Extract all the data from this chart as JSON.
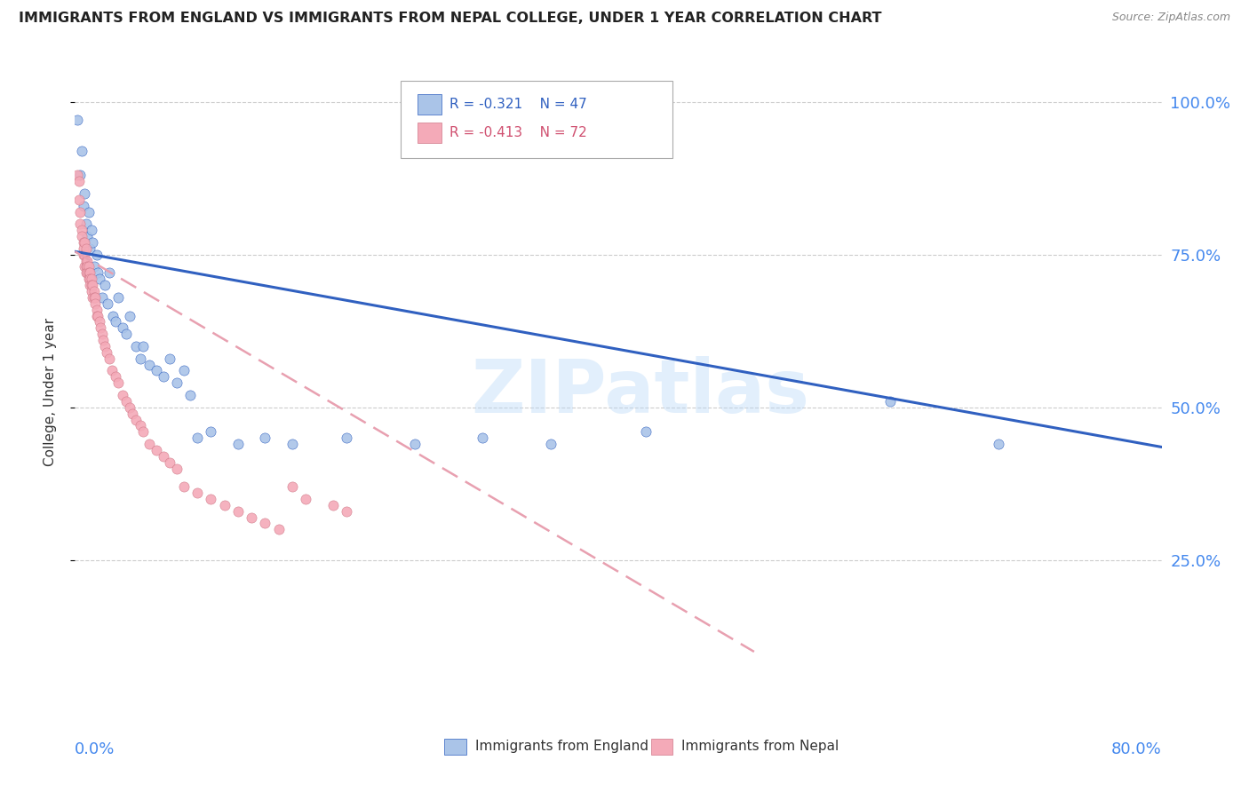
{
  "title": "IMMIGRANTS FROM ENGLAND VS IMMIGRANTS FROM NEPAL COLLEGE, UNDER 1 YEAR CORRELATION CHART",
  "source": "Source: ZipAtlas.com",
  "ylabel": "College, Under 1 year",
  "legend_england": "Immigrants from England",
  "legend_nepal": "Immigrants from Nepal",
  "r_england": -0.321,
  "n_england": 47,
  "r_nepal": -0.413,
  "n_nepal": 72,
  "england_color": "#aac4e8",
  "nepal_color": "#f4aab8",
  "england_line_color": "#3060c0",
  "nepal_line_color": "#e8a0b0",
  "right_axis_color": "#4488ee",
  "title_color": "#222222",
  "watermark": "ZIPatlas",
  "xlim": [
    0.0,
    0.8
  ],
  "ylim": [
    0.0,
    1.05
  ],
  "yticks": [
    0.25,
    0.5,
    0.75,
    1.0
  ],
  "ytick_labels": [
    "25.0%",
    "50.0%",
    "75.0%",
    "100.0%"
  ],
  "england_x": [
    0.002,
    0.004,
    0.005,
    0.006,
    0.007,
    0.008,
    0.009,
    0.01,
    0.011,
    0.012,
    0.013,
    0.014,
    0.016,
    0.017,
    0.018,
    0.02,
    0.022,
    0.024,
    0.025,
    0.028,
    0.03,
    0.032,
    0.035,
    0.038,
    0.04,
    0.045,
    0.048,
    0.05,
    0.055,
    0.06,
    0.065,
    0.07,
    0.075,
    0.08,
    0.085,
    0.09,
    0.1,
    0.12,
    0.14,
    0.16,
    0.2,
    0.25,
    0.3,
    0.35,
    0.42,
    0.6,
    0.68
  ],
  "england_y": [
    0.97,
    0.88,
    0.92,
    0.83,
    0.85,
    0.8,
    0.78,
    0.82,
    0.76,
    0.79,
    0.77,
    0.73,
    0.75,
    0.72,
    0.71,
    0.68,
    0.7,
    0.67,
    0.72,
    0.65,
    0.64,
    0.68,
    0.63,
    0.62,
    0.65,
    0.6,
    0.58,
    0.6,
    0.57,
    0.56,
    0.55,
    0.58,
    0.54,
    0.56,
    0.52,
    0.45,
    0.46,
    0.44,
    0.45,
    0.44,
    0.45,
    0.44,
    0.45,
    0.44,
    0.46,
    0.51,
    0.44
  ],
  "nepal_x": [
    0.002,
    0.003,
    0.003,
    0.004,
    0.004,
    0.005,
    0.005,
    0.006,
    0.006,
    0.006,
    0.007,
    0.007,
    0.007,
    0.008,
    0.008,
    0.008,
    0.008,
    0.009,
    0.009,
    0.009,
    0.01,
    0.01,
    0.01,
    0.011,
    0.011,
    0.011,
    0.012,
    0.012,
    0.012,
    0.013,
    0.013,
    0.014,
    0.014,
    0.015,
    0.015,
    0.016,
    0.016,
    0.017,
    0.018,
    0.019,
    0.02,
    0.021,
    0.022,
    0.023,
    0.025,
    0.027,
    0.03,
    0.032,
    0.035,
    0.038,
    0.04,
    0.042,
    0.045,
    0.048,
    0.05,
    0.055,
    0.06,
    0.065,
    0.07,
    0.075,
    0.08,
    0.09,
    0.1,
    0.11,
    0.12,
    0.13,
    0.14,
    0.15,
    0.16,
    0.17,
    0.19,
    0.2
  ],
  "nepal_y": [
    0.88,
    0.87,
    0.84,
    0.82,
    0.8,
    0.79,
    0.78,
    0.77,
    0.76,
    0.75,
    0.77,
    0.75,
    0.73,
    0.76,
    0.74,
    0.73,
    0.72,
    0.74,
    0.73,
    0.72,
    0.73,
    0.72,
    0.71,
    0.72,
    0.71,
    0.7,
    0.71,
    0.7,
    0.69,
    0.7,
    0.68,
    0.69,
    0.68,
    0.68,
    0.67,
    0.66,
    0.65,
    0.65,
    0.64,
    0.63,
    0.62,
    0.61,
    0.6,
    0.59,
    0.58,
    0.56,
    0.55,
    0.54,
    0.52,
    0.51,
    0.5,
    0.49,
    0.48,
    0.47,
    0.46,
    0.44,
    0.43,
    0.42,
    0.41,
    0.4,
    0.37,
    0.36,
    0.35,
    0.34,
    0.33,
    0.32,
    0.31,
    0.3,
    0.37,
    0.35,
    0.34,
    0.33
  ],
  "eng_trend_x": [
    0.0,
    0.8
  ],
  "eng_trend_y": [
    0.755,
    0.435
  ],
  "nep_trend_x": [
    0.0,
    0.5
  ],
  "nep_trend_y": [
    0.755,
    0.1
  ]
}
